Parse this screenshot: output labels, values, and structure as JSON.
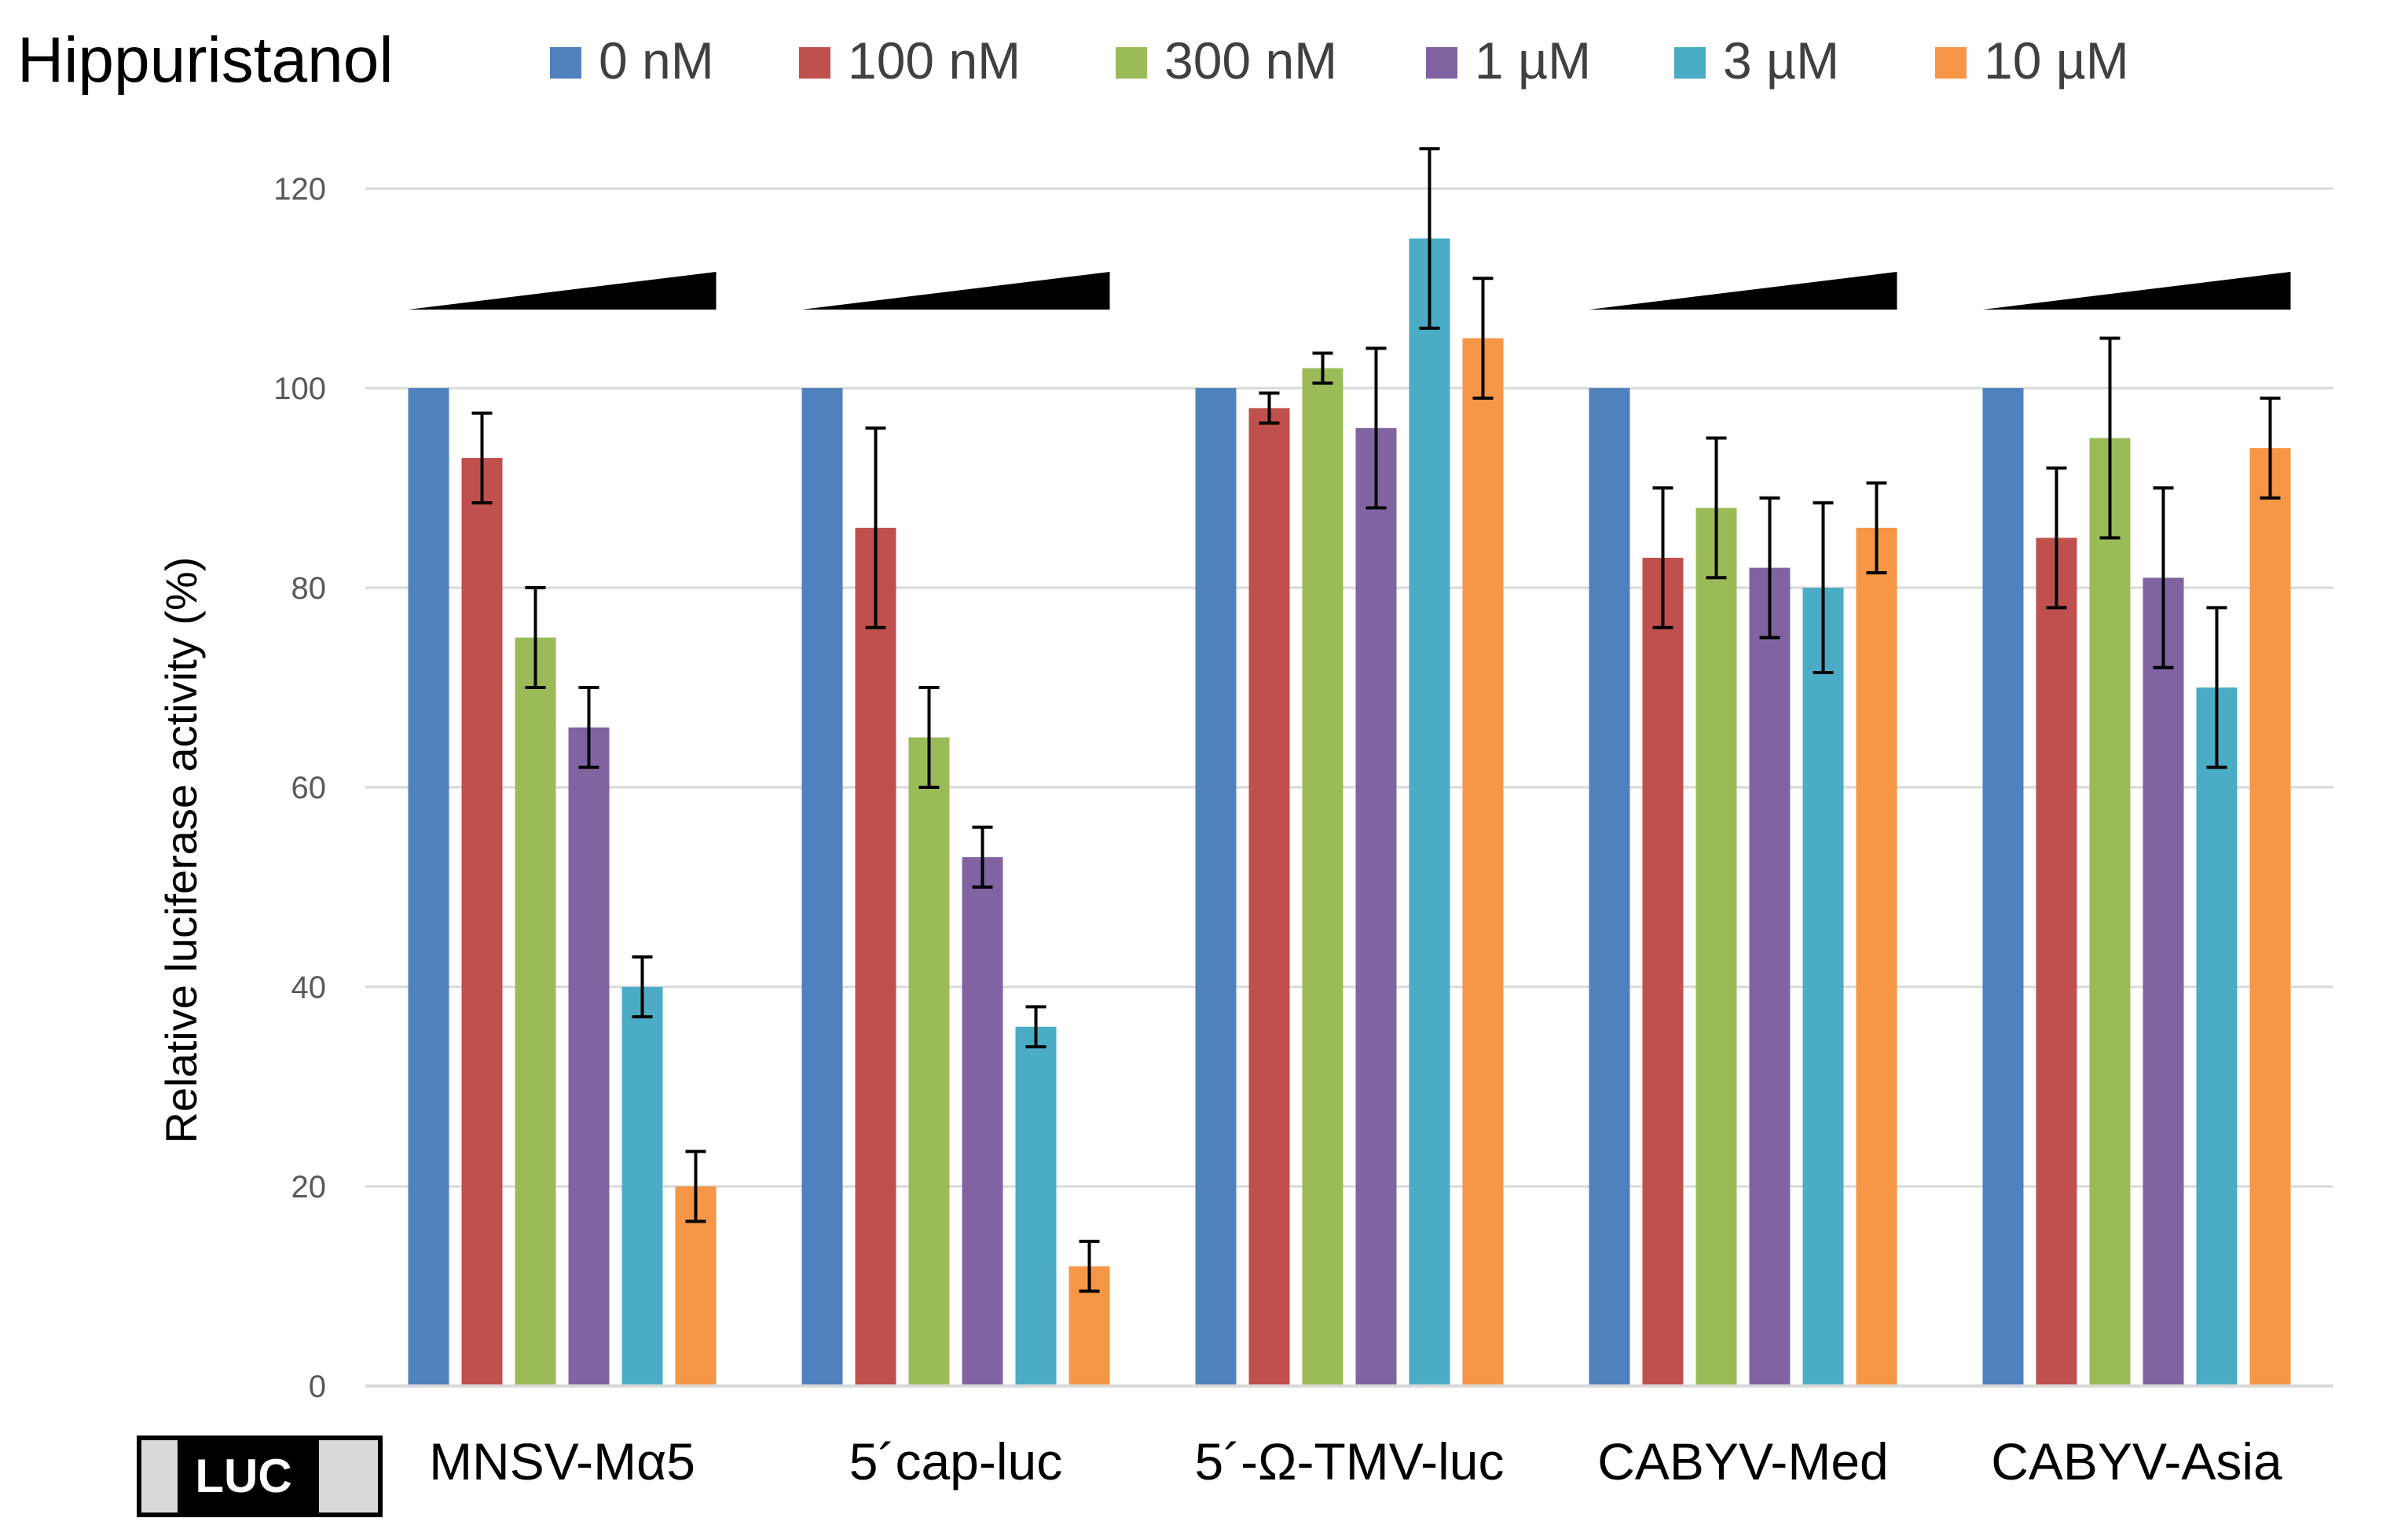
{
  "chart_data": {
    "type": "bar",
    "title": "Hippuristanol",
    "ylabel": "Relative luciferase activity (%)",
    "xlabel": "",
    "ylim": [
      0,
      120
    ],
    "yticks": [
      0,
      20,
      40,
      60,
      80,
      100,
      120
    ],
    "grid": true,
    "legend_position": "top",
    "construct_label": "LUC",
    "categories": [
      "MNSV-Mα5",
      "5´cap-luc",
      "5´-Ω-TMV-luc",
      "CABYV-Med",
      "CABYV-Asia"
    ],
    "concentration_wedge": [
      true,
      true,
      false,
      true,
      true
    ],
    "series": [
      {
        "name": "0 nM",
        "color": "#4F81BD",
        "values": [
          100,
          100,
          100,
          100,
          100
        ],
        "errors": [
          0,
          0,
          0,
          0,
          0
        ]
      },
      {
        "name": "100 nM",
        "color": "#C0504D",
        "values": [
          93,
          86,
          98,
          83,
          85
        ],
        "errors": [
          4.5,
          10,
          1.5,
          7,
          7
        ]
      },
      {
        "name": "300 nM",
        "color": "#9BBB59",
        "values": [
          75,
          65,
          102,
          88,
          95
        ],
        "errors": [
          5,
          5,
          1.5,
          7,
          10
        ]
      },
      {
        "name": "1 µM",
        "color": "#8064A2",
        "values": [
          66,
          53,
          96,
          82,
          81
        ],
        "errors": [
          4,
          3,
          8,
          7,
          9
        ]
      },
      {
        "name": "3 µM",
        "color": "#4BACC6",
        "values": [
          40,
          36,
          115,
          80,
          70
        ],
        "errors": [
          3,
          2,
          9,
          8.5,
          8
        ]
      },
      {
        "name": "10 µM",
        "color": "#F79646",
        "values": [
          20,
          12,
          105,
          86,
          94
        ],
        "errors": [
          3.5,
          2.5,
          6,
          4.5,
          5
        ]
      }
    ]
  }
}
